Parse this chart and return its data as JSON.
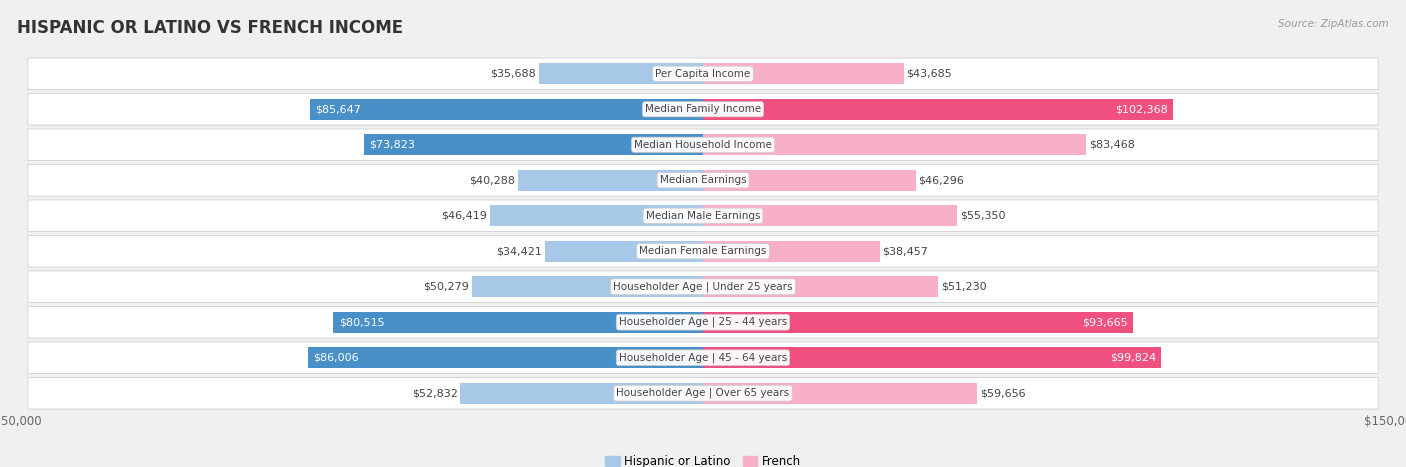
{
  "title": "HISPANIC OR LATINO VS FRENCH INCOME",
  "source": "Source: ZipAtlas.com",
  "categories": [
    "Per Capita Income",
    "Median Family Income",
    "Median Household Income",
    "Median Earnings",
    "Median Male Earnings",
    "Median Female Earnings",
    "Householder Age | Under 25 years",
    "Householder Age | 25 - 44 years",
    "Householder Age | 45 - 64 years",
    "Householder Age | Over 65 years"
  ],
  "hispanic_values": [
    35688,
    85647,
    73823,
    40288,
    46419,
    34421,
    50279,
    80515,
    86006,
    52832
  ],
  "french_values": [
    43685,
    102368,
    83468,
    46296,
    55350,
    38457,
    51230,
    93665,
    99824,
    59656
  ],
  "hispanic_labels": [
    "$35,688",
    "$85,647",
    "$73,823",
    "$40,288",
    "$46,419",
    "$34,421",
    "$50,279",
    "$80,515",
    "$86,006",
    "$52,832"
  ],
  "french_labels": [
    "$43,685",
    "$102,368",
    "$83,468",
    "$46,296",
    "$55,350",
    "$38,457",
    "$51,230",
    "$93,665",
    "$99,824",
    "$59,656"
  ],
  "hispanic_dark_indices": [
    1,
    2,
    7,
    8
  ],
  "french_dark_indices": [
    1,
    7,
    8
  ],
  "hispanic_color_light": "#a8c8e8",
  "hispanic_color_dark": "#4a90c8",
  "french_color_light": "#f8b0c8",
  "french_color_dark": "#f05080",
  "max_value": 150000,
  "background_color": "#f0f0f0",
  "row_bg_color": "#ffffff",
  "row_bg_alt": "#f8f8f8",
  "row_border_color": "#d0d0d0",
  "text_dark": "#444444",
  "text_white": "#ffffff",
  "title_fontsize": 12,
  "label_fontsize": 8,
  "cat_fontsize": 7.5,
  "axis_label_fontsize": 8.5,
  "legend_fontsize": 8.5
}
